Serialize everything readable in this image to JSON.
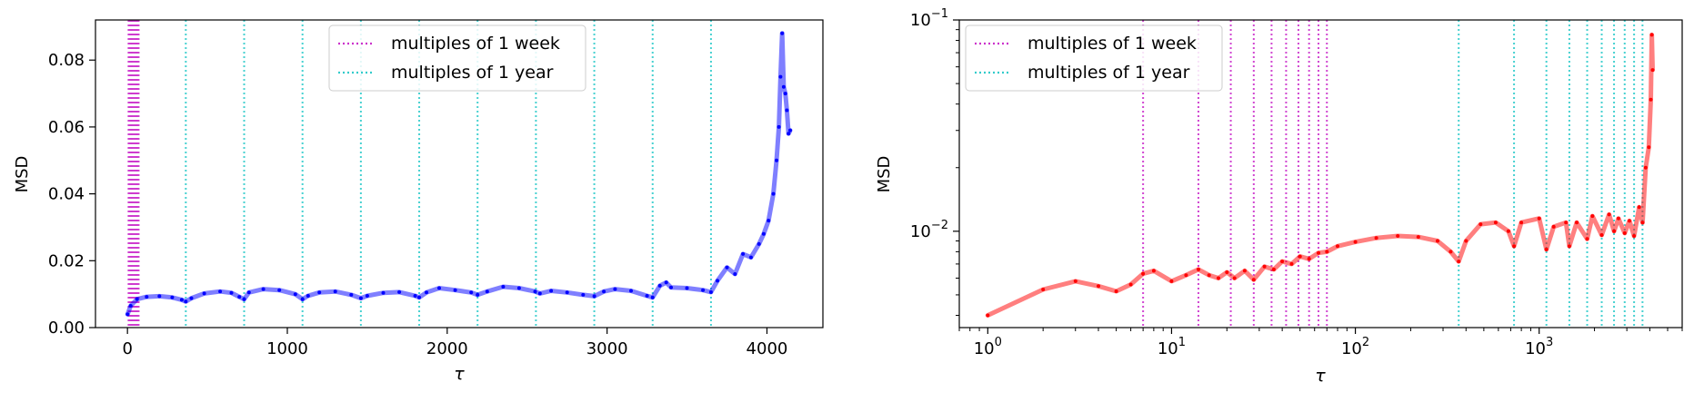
{
  "chart_data": [
    {
      "type": "line",
      "xlabel": "τ",
      "ylabel": "MSD",
      "x_scale": "linear",
      "y_scale": "linear",
      "xlim": [
        -200,
        4350
      ],
      "ylim": [
        0.0,
        0.092
      ],
      "x_ticks": [
        0,
        1000,
        2000,
        3000,
        4000
      ],
      "x_tick_labels": [
        "0",
        "1000",
        "2000",
        "3000",
        "4000"
      ],
      "y_ticks": [
        0.0,
        0.02,
        0.04,
        0.06,
        0.08
      ],
      "y_tick_labels": [
        "0.00",
        "0.02",
        "0.04",
        "0.06",
        "0.08"
      ],
      "grid": false,
      "legend": {
        "placement": "top-center",
        "entries": [
          {
            "label": "multiples of 1 week",
            "color": "#cc33cc",
            "style": "dotted"
          },
          {
            "label": "multiples of 1 year",
            "color": "#33cccc",
            "style": "dotted"
          }
        ]
      },
      "reference_lines": {
        "week": [
          7,
          14,
          21,
          28,
          35,
          42,
          49,
          56,
          63,
          70
        ],
        "year": [
          365,
          730,
          1095,
          1460,
          1825,
          2190,
          2555,
          2920,
          3285,
          3650
        ]
      },
      "series": [
        {
          "color": "#0000ff",
          "x": [
            1,
            20,
            60,
            120,
            200,
            280,
            340,
            365,
            400,
            480,
            580,
            650,
            700,
            730,
            760,
            850,
            950,
            1050,
            1095,
            1130,
            1200,
            1300,
            1400,
            1460,
            1500,
            1600,
            1700,
            1800,
            1825,
            1870,
            1950,
            2050,
            2150,
            2190,
            2250,
            2350,
            2450,
            2550,
            2580,
            2650,
            2750,
            2850,
            2920,
            2980,
            3050,
            3150,
            3250,
            3285,
            3330,
            3370,
            3400,
            3500,
            3600,
            3650,
            3690,
            3750,
            3800,
            3850,
            3900,
            3950,
            3980,
            4010,
            4040,
            4060,
            4075,
            4085,
            4095,
            4105,
            4115,
            4125,
            4135,
            4145
          ],
          "y": [
            0.004,
            0.0065,
            0.0085,
            0.0092,
            0.0094,
            0.009,
            0.0083,
            0.0078,
            0.0088,
            0.0102,
            0.0108,
            0.0104,
            0.0092,
            0.0085,
            0.0105,
            0.0115,
            0.0112,
            0.01,
            0.0085,
            0.0095,
            0.0105,
            0.0108,
            0.0098,
            0.0088,
            0.0095,
            0.0104,
            0.0106,
            0.0095,
            0.009,
            0.0105,
            0.0118,
            0.0112,
            0.0105,
            0.0098,
            0.0108,
            0.0122,
            0.0118,
            0.0108,
            0.0102,
            0.011,
            0.0105,
            0.0098,
            0.0094,
            0.0108,
            0.0115,
            0.011,
            0.0095,
            0.009,
            0.0125,
            0.0135,
            0.012,
            0.0118,
            0.0112,
            0.0106,
            0.014,
            0.018,
            0.016,
            0.022,
            0.021,
            0.025,
            0.028,
            0.032,
            0.04,
            0.05,
            0.06,
            0.075,
            0.088,
            0.072,
            0.07,
            0.065,
            0.058,
            0.059
          ]
        }
      ]
    },
    {
      "type": "line",
      "xlabel": "τ",
      "ylabel": "MSD",
      "x_scale": "log",
      "y_scale": "log",
      "xlim": [
        0.7,
        6000
      ],
      "ylim": [
        0.0035,
        0.1
      ],
      "x_ticks": [
        1,
        10,
        100,
        1000
      ],
      "x_tick_labels": [
        "10^0",
        "10^1",
        "10^2",
        "10^3"
      ],
      "y_ticks": [
        0.01,
        0.1
      ],
      "y_tick_labels": [
        "10^-2",
        "10^-1"
      ],
      "grid": false,
      "legend": {
        "placement": "top-left",
        "entries": [
          {
            "label": "multiples of 1 week",
            "color": "#cc33cc",
            "style": "dotted"
          },
          {
            "label": "multiples of 1 year",
            "color": "#33cccc",
            "style": "dotted"
          }
        ]
      },
      "reference_lines": {
        "week": [
          7,
          14,
          21,
          28,
          35,
          42,
          49,
          56,
          63,
          70
        ],
        "year": [
          365,
          730,
          1095,
          1460,
          1825,
          2190,
          2555,
          2920,
          3285,
          3650
        ]
      },
      "series": [
        {
          "color": "#ff0000",
          "x": [
            1,
            2,
            3,
            4,
            5,
            6,
            7,
            8,
            10,
            12,
            14,
            16,
            18,
            20,
            22,
            25,
            28,
            32,
            36,
            40,
            45,
            50,
            56,
            63,
            70,
            80,
            100,
            130,
            170,
            220,
            280,
            330,
            365,
            400,
            480,
            580,
            680,
            730,
            800,
            1000,
            1095,
            1200,
            1400,
            1460,
            1600,
            1825,
            1950,
            2190,
            2400,
            2555,
            2700,
            2920,
            3100,
            3285,
            3500,
            3650,
            3800,
            3950,
            4050,
            4100,
            4145
          ],
          "y": [
            0.004,
            0.0053,
            0.0058,
            0.0055,
            0.0052,
            0.0056,
            0.0063,
            0.0065,
            0.0058,
            0.0062,
            0.0066,
            0.0062,
            0.006,
            0.0064,
            0.006,
            0.0065,
            0.0059,
            0.0068,
            0.0066,
            0.0072,
            0.007,
            0.0076,
            0.0074,
            0.0079,
            0.008,
            0.0085,
            0.0089,
            0.0093,
            0.0095,
            0.0094,
            0.009,
            0.008,
            0.0072,
            0.009,
            0.0108,
            0.011,
            0.01,
            0.0085,
            0.011,
            0.0115,
            0.0082,
            0.0105,
            0.011,
            0.0085,
            0.011,
            0.0092,
            0.0118,
            0.0096,
            0.012,
            0.01,
            0.0115,
            0.0098,
            0.0112,
            0.0095,
            0.013,
            0.011,
            0.02,
            0.025,
            0.042,
            0.085,
            0.058
          ]
        }
      ]
    }
  ]
}
